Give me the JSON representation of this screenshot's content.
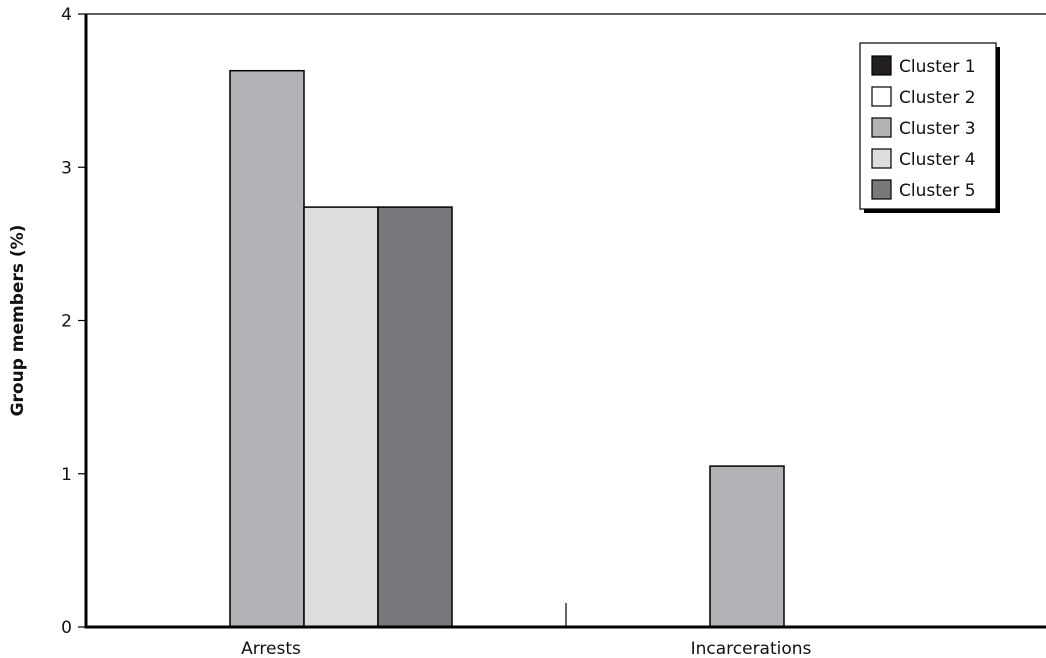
{
  "chart_data": {
    "type": "bar",
    "title": "",
    "xlabel": "",
    "ylabel": "Group members (%)",
    "ylim": [
      0,
      4
    ],
    "yticks": [
      "0",
      "1",
      "2",
      "3",
      "4"
    ],
    "categories": [
      "Arrests",
      "Incarcerations"
    ],
    "grid": false,
    "legend_position": "top-right",
    "series": [
      {
        "name": "Cluster 1",
        "color": "#231f20",
        "values": [
          0,
          0
        ]
      },
      {
        "name": "Cluster 2",
        "color": "#ffffff",
        "values": [
          0,
          0
        ]
      },
      {
        "name": "Cluster 3",
        "color": "#b2b3b6",
        "values": [
          3.63,
          1.05
        ]
      },
      {
        "name": "Cluster 4",
        "color": "#dcdddf",
        "values": [
          2.74,
          0
        ]
      },
      {
        "name": "Cluster 5",
        "color": "#77787b",
        "values": [
          2.74,
          0
        ]
      }
    ]
  }
}
